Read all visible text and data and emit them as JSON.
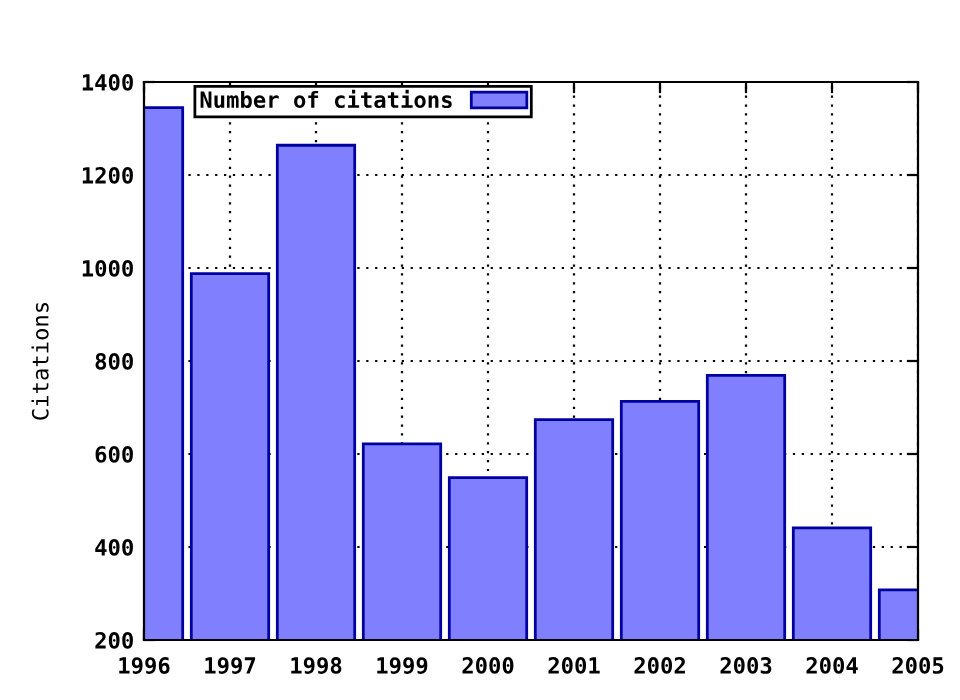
{
  "chart_data": {
    "type": "bar",
    "ylabel": "Citations",
    "x": [
      1996,
      1997,
      1998,
      1999,
      2000,
      2001,
      2002,
      2003,
      2004,
      2005
    ],
    "series": [
      {
        "name": "Number of citations",
        "color": "#8080ff",
        "values": [
          1345,
          988,
          1264,
          622,
          549,
          674,
          713,
          769,
          441,
          308
        ]
      }
    ],
    "xlim": [
      1996,
      2005
    ],
    "xticks": [
      1996,
      1997,
      1998,
      1999,
      2000,
      2001,
      2002,
      2003,
      2004,
      2005
    ],
    "ylim": [
      200,
      1400
    ],
    "yticks": [
      200,
      400,
      600,
      800,
      1000,
      1200,
      1400
    ],
    "grid": true,
    "legend": "top left"
  }
}
